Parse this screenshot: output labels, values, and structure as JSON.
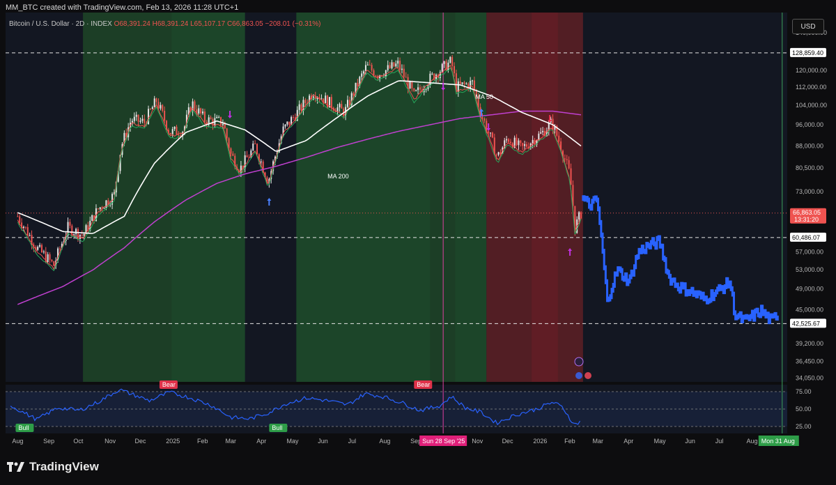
{
  "header": {
    "credit": "MM_BTC created with TradingView.com, Feb 13, 2026 11:28 UTC+1",
    "symbol": "Bitcoin / U.S. Dollar · 2D · INDEX",
    "ohlc": "O68,391.24 H68,391.24 L65,107.17 C66,863.05 −208.01 (−0.31%)",
    "currency_button": "USD",
    "brand": "TradingView"
  },
  "colors": {
    "background": "#131722",
    "up_candle": "#e6e6e6",
    "down_candle": "#ef5350",
    "projection": "#2962ff",
    "ma50": "#ffffff",
    "ma200": "#c040d0",
    "bull_zone": "#1e4a2a",
    "bear_zone": "#5a1f25",
    "rsi": "#2962ff"
  },
  "chart_data": {
    "type": "line",
    "title": "Bitcoin / U.S. Dollar · 2D · INDEX",
    "y_scale": "log",
    "ylim": [
      33500,
      152000
    ],
    "y_ticks": [
      "140,000.00",
      "128,859.40",
      "120,000.00",
      "112,000.00",
      "104,000.00",
      "96,000.00",
      "88,000.00",
      "80,500.00",
      "73,000.00",
      "66,863.05",
      "60,486.07",
      "57,000.00",
      "53,000.00",
      "49,000.00",
      "45,000.00",
      "42,525.67",
      "39,200.00",
      "36,450.00",
      "34,050.00"
    ],
    "x_ticks": [
      "Aug",
      "Sep",
      "Oct",
      "Nov",
      "Dec",
      "2025",
      "Feb",
      "Mar",
      "Apr",
      "May",
      "Jun",
      "Jul",
      "Aug",
      "Sep",
      "Sun 28 Sep '25",
      "Nov",
      "Dec",
      "2026",
      "Feb",
      "Mar",
      "Apr",
      "May",
      "Jun",
      "Jul",
      "Aug",
      "Mon 31 Aug"
    ],
    "price_series": {
      "name": "BTCUSD",
      "x": [
        "2024-08",
        "2024-08-20",
        "2024-09-06",
        "2024-09-20",
        "2024-10-05",
        "2024-10-20",
        "2024-11-05",
        "2024-11-12",
        "2024-11-22",
        "2024-12-05",
        "2024-12-17",
        "2024-12-30",
        "2025-01-13",
        "2025-01-21",
        "2025-02-03",
        "2025-02-21",
        "2025-03-01",
        "2025-03-10",
        "2025-03-25",
        "2025-04-07",
        "2025-04-22",
        "2025-05-10",
        "2025-05-22",
        "2025-06-10",
        "2025-06-22",
        "2025-07-14",
        "2025-07-25",
        "2025-08-14",
        "2025-08-30",
        "2025-09-15",
        "2025-10-06",
        "2025-10-11",
        "2025-10-27",
        "2025-11-04",
        "2025-11-21",
        "2025-12-01",
        "2025-12-15",
        "2026-01-05",
        "2026-01-14",
        "2026-01-22",
        "2026-02-01",
        "2026-02-06",
        "2026-02-12"
      ],
      "y": [
        66000,
        58000,
        54000,
        63000,
        61000,
        68000,
        72000,
        88000,
        98000,
        97000,
        106000,
        93000,
        94000,
        105000,
        98000,
        97000,
        85000,
        80000,
        88000,
        76000,
        94000,
        103000,
        110000,
        104000,
        101000,
        122000,
        118000,
        123000,
        108000,
        116000,
        124500,
        112000,
        114000,
        101000,
        84000,
        91000,
        87000,
        93000,
        97000,
        89000,
        78000,
        63000,
        66863
      ]
    },
    "projection_series": {
      "name": "projection",
      "x": [
        "2026-02-14",
        "2026-02-20",
        "2026-02-28",
        "2026-03-05",
        "2026-03-10",
        "2026-03-20",
        "2026-04-01",
        "2026-04-10",
        "2026-04-20",
        "2026-05-01",
        "2026-05-10",
        "2026-05-20",
        "2026-06-01",
        "2026-06-15",
        "2026-07-01",
        "2026-07-10",
        "2026-07-15",
        "2026-07-25",
        "2026-08-10",
        "2026-08-20",
        "2026-08-27"
      ],
      "y": [
        71000,
        69000,
        70500,
        58000,
        46500,
        53000,
        50500,
        57000,
        58500,
        59500,
        51500,
        49500,
        48500,
        47000,
        49000,
        50500,
        44000,
        43000,
        44800,
        43000,
        44300
      ]
    },
    "ma50": {
      "name": "MA 50",
      "x": [
        "2024-08",
        "2024-09-15",
        "2024-10-15",
        "2024-11-15",
        "2024-12-15",
        "2025-01-15",
        "2025-02-15",
        "2025-03-15",
        "2025-04-15",
        "2025-05-15",
        "2025-06-15",
        "2025-07-15",
        "2025-08-15",
        "2025-09-15",
        "2025-10-15",
        "2025-11-15",
        "2025-12-15",
        "2026-01-15",
        "2026-02-12"
      ],
      "y": [
        67000,
        62000,
        61500,
        66000,
        82000,
        93000,
        97500,
        94000,
        86000,
        90000,
        99000,
        108000,
        115000,
        114000,
        113000,
        108000,
        101000,
        96000,
        88000
      ]
    },
    "ma200": {
      "name": "MA 200",
      "x": [
        "2024-08",
        "2024-09-15",
        "2024-10-15",
        "2024-11-15",
        "2024-12-15",
        "2025-01-15",
        "2025-02-15",
        "2025-03-15",
        "2025-04-15",
        "2025-05-15",
        "2025-06-15",
        "2025-07-15",
        "2025-08-15",
        "2025-09-15",
        "2025-10-15",
        "2025-11-15",
        "2025-12-15",
        "2026-01-15",
        "2026-02-12"
      ],
      "y": [
        46000,
        49500,
        53000,
        58000,
        64500,
        70500,
        75500,
        78500,
        81000,
        84000,
        87500,
        90500,
        93500,
        96000,
        98500,
        100000,
        101500,
        101500,
        100000
      ]
    },
    "horizontal_levels": [
      128859.4,
      60486.07,
      42525.67
    ],
    "last_price": {
      "value": "66,863.05",
      "countdown": "13:31:20"
    },
    "zones": [
      {
        "from": "2024-10-05",
        "to": "2025-03-15",
        "kind": "bull"
      },
      {
        "from": "2025-05-05",
        "to": "2025-11-10",
        "kind": "bull"
      },
      {
        "from": "2025-11-10",
        "to": "2026-02-14",
        "kind": "bear"
      }
    ],
    "vertical_markers": [
      "2025-09-28",
      "2026-08-31"
    ],
    "annotations": [
      "MA 50",
      "MA 200"
    ],
    "rsi": {
      "ylim": [
        15,
        85
      ],
      "y_ticks": [
        "75.00",
        "50.00",
        "25.00"
      ],
      "x": [
        "2024-07-25",
        "2024-08-20",
        "2024-09-10",
        "2024-10-01",
        "2024-10-20",
        "2024-11-10",
        "2024-11-25",
        "2024-12-10",
        "2024-12-30",
        "2025-01-20",
        "2025-02-10",
        "2025-03-01",
        "2025-03-20",
        "2025-04-08",
        "2025-04-25",
        "2025-05-15",
        "2025-06-05",
        "2025-06-25",
        "2025-07-12",
        "2025-07-30",
        "2025-08-20",
        "2025-09-05",
        "2025-09-25",
        "2025-10-06",
        "2025-10-20",
        "2025-11-05",
        "2025-11-20",
        "2025-12-10",
        "2025-12-30",
        "2026-01-15",
        "2026-01-25",
        "2026-02-05",
        "2026-02-12"
      ],
      "y": [
        55,
        35,
        52,
        48,
        60,
        78,
        70,
        62,
        74,
        66,
        55,
        38,
        36,
        45,
        58,
        66,
        62,
        56,
        72,
        68,
        58,
        48,
        55,
        68,
        52,
        45,
        30,
        42,
        50,
        60,
        52,
        28,
        32
      ],
      "divergences": [
        {
          "label": "Bull",
          "at": "2024-07-30",
          "kind": "bull"
        },
        {
          "label": "Bear",
          "at": "2024-12-20",
          "kind": "bear"
        },
        {
          "label": "Bull",
          "at": "2025-04-08",
          "kind": "bull"
        },
        {
          "label": "Bear",
          "at": "2025-08-30",
          "kind": "bear"
        }
      ]
    }
  }
}
